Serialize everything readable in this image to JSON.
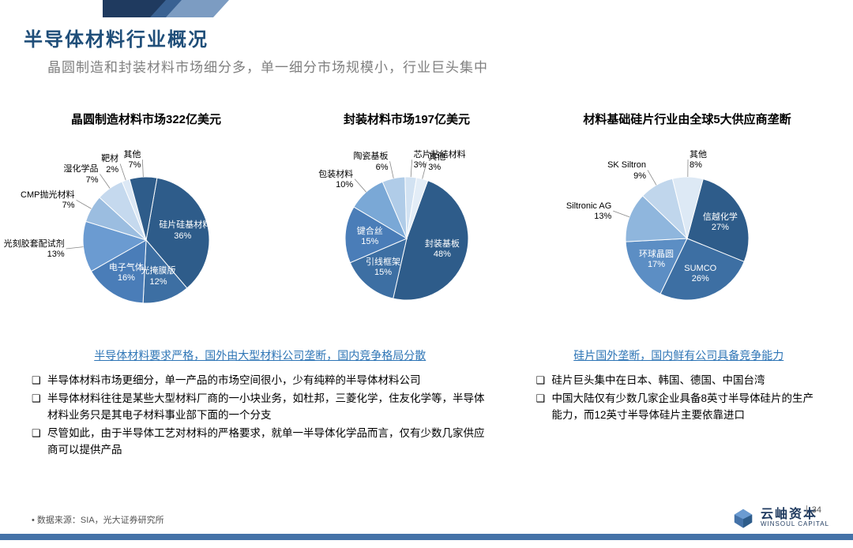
{
  "header": {
    "title": "半导体材料行业概况",
    "subtitle": "晶圆制造和封装材料市场细分多，单一细分市场规模小，行业巨头集中"
  },
  "charts": {
    "chart1": {
      "type": "pie",
      "title": "晶圆制造材料市场322亿美元",
      "radius": 80,
      "slices": [
        {
          "label": "硅片硅基材料",
          "value": 36,
          "color": "#2e5c8a",
          "label_inside": true
        },
        {
          "label": "光掩膜版",
          "value": 12,
          "color": "#3d6fa3",
          "label_inside": true
        },
        {
          "label": "电子气体",
          "value": 16,
          "color": "#4a7db8",
          "label_inside": true
        },
        {
          "label": "光刻胶套配试剂",
          "value": 13,
          "color": "#6b9bd1",
          "label_inside": false
        },
        {
          "label": "CMP抛光材料",
          "value": 7,
          "color": "#9bbde0",
          "label_inside": false
        },
        {
          "label": "湿化学品",
          "value": 7,
          "color": "#c5d9ee",
          "label_inside": false
        },
        {
          "label": "靶材",
          "value": 2,
          "color": "#dce8f5",
          "label_inside": false
        },
        {
          "label": "其他",
          "value": 7,
          "color": "#2e5c8a",
          "label_inside": false
        }
      ]
    },
    "chart2": {
      "type": "pie",
      "title": "封装材料市场197亿美元",
      "radius": 78,
      "slices": [
        {
          "label": "封装基板",
          "value": 48,
          "color": "#2e5c8a",
          "label_inside": true
        },
        {
          "label": "引线框架",
          "value": 15,
          "color": "#3d6fa3",
          "label_inside": true
        },
        {
          "label": "键合丝",
          "value": 15,
          "color": "#4a7db8",
          "label_inside": true
        },
        {
          "label": "包装材料",
          "value": 10,
          "color": "#7aa8d6",
          "label_inside": false
        },
        {
          "label": "陶瓷基板",
          "value": 6,
          "color": "#b0cce8",
          "label_inside": false
        },
        {
          "label": "芯片粘结材料",
          "value": 3,
          "color": "#d2e2f2",
          "label_inside": false
        },
        {
          "label": "其他",
          "value": 3,
          "color": "#e3edf7",
          "label_inside": false
        }
      ]
    },
    "chart3": {
      "type": "pie",
      "title": "材料基础硅片行业由全球5大供应商垄断",
      "radius": 78,
      "slices": [
        {
          "label": "信越化学",
          "value": 27,
          "color": "#2e5c8a",
          "label_inside": true
        },
        {
          "label": "SUMCO",
          "value": 26,
          "color": "#3d6fa3",
          "label_inside": true
        },
        {
          "label": "环球晶圆",
          "value": 17,
          "color": "#5c8ec4",
          "label_inside": true
        },
        {
          "label": "Siltronic AG",
          "value": 13,
          "color": "#8fb6dd",
          "label_inside": false
        },
        {
          "label": "SK Siltron",
          "value": 9,
          "color": "#c0d6ec",
          "label_inside": false
        },
        {
          "label": "其他",
          "value": 8,
          "color": "#dde9f5",
          "label_inside": false
        }
      ]
    }
  },
  "notes": {
    "left": {
      "heading": "半导体材料要求严格，国外由大型材料公司垄断，国内竞争格局分散",
      "items": [
        "半导体材料市场更细分，单一产品的市场空间很小，少有纯粹的半导体材料公司",
        "半导体材料往往是某些大型材料厂商的一小块业务，如杜邦，三菱化学，住友化学等，半导体材料业务只是其电子材料事业部下面的一个分支",
        "尽管如此，由于半导体工艺对材料的严格要求，就单一半导体化学品而言，仅有少数几家供应商可以提供产品"
      ]
    },
    "right": {
      "heading": "硅片国外垄断，国内鲜有公司具备竞争能力",
      "items": [
        "硅片巨头集中在日本、韩国、德国、中国台湾",
        "中国大陆仅有少数几家企业具备8英寸半导体硅片的生产能力，而12英寸半导体硅片主要依靠进口"
      ]
    }
  },
  "footer": {
    "source": "数据来源：SIA，光大证券研究所",
    "logo_cn": "云岫资本",
    "logo_en": "WINSOUL CAPITAL",
    "page": "34",
    "bar_color": "#4472a8"
  },
  "colors": {
    "title": "#1f4e79",
    "subtitle": "#7f7f7f",
    "link": "#2e75b6"
  }
}
